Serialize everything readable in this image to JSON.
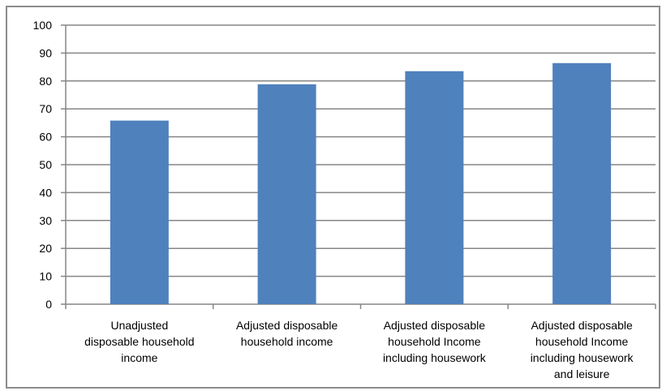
{
  "chart_data": {
    "type": "bar",
    "categories": [
      [
        "Unadjusted",
        "disposable household",
        "income"
      ],
      [
        "Adjusted disposable",
        "household income"
      ],
      [
        "Adjusted disposable",
        "household Income",
        "including housework"
      ],
      [
        "Adjusted disposable",
        "household Income",
        "including housework",
        "and leisure"
      ]
    ],
    "values": [
      65.8,
      78.8,
      83.5,
      86.4
    ],
    "ylim": [
      0,
      100
    ],
    "yticks": [
      0,
      10,
      20,
      30,
      40,
      50,
      60,
      70,
      80,
      90,
      100
    ],
    "grid": true,
    "legend": "none",
    "bar_color": "#4f81bd"
  }
}
